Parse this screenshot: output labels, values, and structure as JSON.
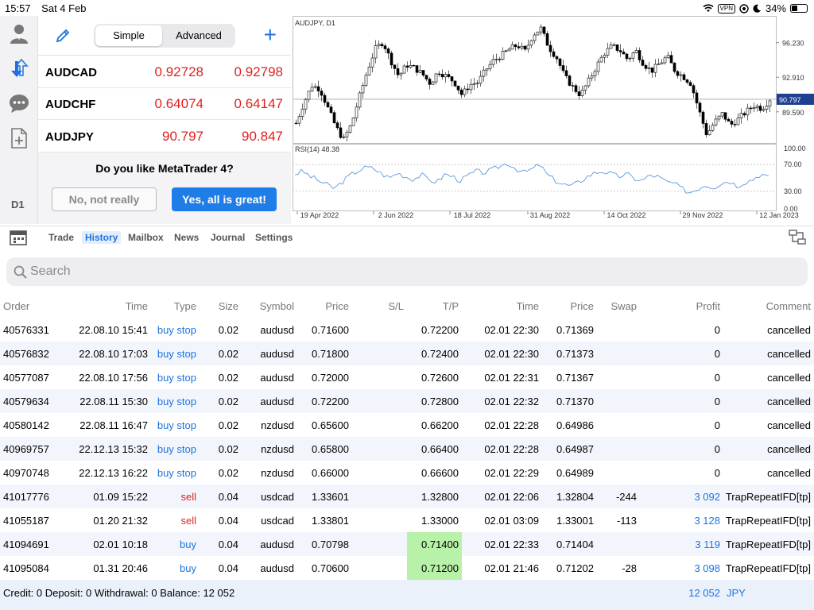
{
  "status_bar": {
    "time": "15:57",
    "date": "Sat 4 Feb",
    "vpn": "VPN",
    "battery": "34%"
  },
  "sidebar": {
    "timeframe": "D1"
  },
  "watchlist": {
    "mode_simple": "Simple",
    "mode_advanced": "Advanced",
    "rows": [
      {
        "symbol": "AUDCAD",
        "bid": "0.92728",
        "ask": "0.92798"
      },
      {
        "symbol": "AUDCHF",
        "bid": "0.64074",
        "ask": "0.64147"
      },
      {
        "symbol": "AUDJPY",
        "bid": "90.797",
        "ask": "90.847"
      }
    ],
    "prompt": "Do you like MetaTrader 4?",
    "no_label": "No, not really",
    "yes_label": "Yes, all is great!"
  },
  "chart_data": {
    "type": "candlestick",
    "title": "AUDJPY, D1",
    "indicator": "RSI(14) 48.38",
    "current_price": "90.797",
    "price_ticks": [
      "96.230",
      "92.910",
      "89.590"
    ],
    "rsi_ticks": [
      "100.00",
      "70.00",
      "30.00",
      "0.00"
    ],
    "x_ticks": [
      "19 Apr 2022",
      "2 Jun 2022",
      "18 Jul 2022",
      "31 Aug 2022",
      "14 Oct 2022",
      "29 Nov 2022",
      "12 Jan 2023"
    ],
    "ylim": [
      86.6,
      98.8
    ],
    "rsi_ylim": [
      0,
      100
    ],
    "close_path": [
      88.5,
      90.5,
      92.1,
      91.8,
      90.0,
      88.2,
      86.9,
      88.4,
      91.0,
      93.5,
      95.6,
      96.3,
      94.5,
      93.0,
      94.1,
      93.8,
      93.2,
      92.3,
      93.5,
      93.0,
      92.5,
      91.2,
      92.2,
      92.4,
      93.6,
      94.5,
      95.0,
      95.6,
      96.0,
      95.4,
      97.0,
      97.6,
      95.8,
      94.8,
      93.0,
      92.0,
      91.2,
      92.5,
      93.9,
      95.2,
      95.9,
      95.5,
      94.6,
      95.5,
      94.2,
      93.5,
      94.2,
      94.9,
      93.5,
      93.0,
      92.3,
      89.8,
      87.4,
      88.6,
      89.4,
      88.3,
      88.9,
      89.6,
      90.2,
      89.9,
      90.8
    ],
    "rsi_path": [
      56,
      60,
      52,
      46,
      40,
      34,
      44,
      54,
      61,
      66,
      64,
      56,
      50,
      58,
      52,
      48,
      55,
      47,
      44,
      56,
      52,
      46,
      54,
      60,
      58,
      62,
      68,
      72,
      64,
      58,
      63,
      70,
      54,
      46,
      40,
      38,
      44,
      52,
      58,
      60,
      56,
      52,
      56,
      49,
      46,
      54,
      52,
      44,
      42,
      34,
      28,
      34,
      40,
      36,
      42,
      46,
      38,
      44,
      48,
      56,
      50
    ]
  },
  "tabs": [
    "Trade",
    "History",
    "Mailbox",
    "News",
    "Journal",
    "Settings"
  ],
  "active_tab": "History",
  "search": {
    "placeholder": "Search"
  },
  "history": {
    "columns": [
      "Order",
      "Time",
      "Type",
      "Size",
      "Symbol",
      "Price",
      "S/L",
      "T/P",
      "Time",
      "Price",
      "Swap",
      "Profit",
      "Comment"
    ],
    "rows": [
      {
        "order": "40576331",
        "open_time": "22.08.10 15:41",
        "type": "buy stop",
        "size": "0.02",
        "symbol": "audusd",
        "price": "0.71600",
        "sl": "",
        "tp": "0.72200",
        "close_time": "02.01 22:30",
        "close_price": "0.71369",
        "swap": "",
        "profit": "0",
        "comment": "cancelled"
      },
      {
        "order": "40576832",
        "open_time": "22.08.10 17:03",
        "type": "buy stop",
        "size": "0.02",
        "symbol": "audusd",
        "price": "0.71800",
        "sl": "",
        "tp": "0.72400",
        "close_time": "02.01 22:30",
        "close_price": "0.71373",
        "swap": "",
        "profit": "0",
        "comment": "cancelled"
      },
      {
        "order": "40577087",
        "open_time": "22.08.10 17:56",
        "type": "buy stop",
        "size": "0.02",
        "symbol": "audusd",
        "price": "0.72000",
        "sl": "",
        "tp": "0.72600",
        "close_time": "02.01 22:31",
        "close_price": "0.71367",
        "swap": "",
        "profit": "0",
        "comment": "cancelled"
      },
      {
        "order": "40579634",
        "open_time": "22.08.11 15:30",
        "type": "buy stop",
        "size": "0.02",
        "symbol": "audusd",
        "price": "0.72200",
        "sl": "",
        "tp": "0.72800",
        "close_time": "02.01 22:32",
        "close_price": "0.71370",
        "swap": "",
        "profit": "0",
        "comment": "cancelled"
      },
      {
        "order": "40580142",
        "open_time": "22.08.11 16:47",
        "type": "buy stop",
        "size": "0.02",
        "symbol": "nzdusd",
        "price": "0.65600",
        "sl": "",
        "tp": "0.66200",
        "close_time": "02.01 22:28",
        "close_price": "0.64986",
        "swap": "",
        "profit": "0",
        "comment": "cancelled"
      },
      {
        "order": "40969757",
        "open_time": "22.12.13 15:32",
        "type": "buy stop",
        "size": "0.02",
        "symbol": "nzdusd",
        "price": "0.65800",
        "sl": "",
        "tp": "0.66400",
        "close_time": "02.01 22:28",
        "close_price": "0.64987",
        "swap": "",
        "profit": "0",
        "comment": "cancelled"
      },
      {
        "order": "40970748",
        "open_time": "22.12.13 16:22",
        "type": "buy stop",
        "size": "0.02",
        "symbol": "nzdusd",
        "price": "0.66000",
        "sl": "",
        "tp": "0.66600",
        "close_time": "02.01 22:29",
        "close_price": "0.64989",
        "swap": "",
        "profit": "0",
        "comment": "cancelled"
      },
      {
        "order": "41017776",
        "open_time": "01.09 15:22",
        "type": "sell",
        "size": "0.04",
        "symbol": "usdcad",
        "price": "1.33601",
        "sl": "",
        "tp": "1.32800",
        "close_time": "02.01 22:06",
        "close_price": "1.32804",
        "swap": "-244",
        "profit": "3 092",
        "comment": "TrapRepeatIFD[tp]"
      },
      {
        "order": "41055187",
        "open_time": "01.20 21:32",
        "type": "sell",
        "size": "0.04",
        "symbol": "usdcad",
        "price": "1.33801",
        "sl": "",
        "tp": "1.33000",
        "close_time": "02.01 03:09",
        "close_price": "1.33001",
        "swap": "-113",
        "profit": "3 128",
        "comment": "TrapRepeatIFD[tp]"
      },
      {
        "order": "41094691",
        "open_time": "02.01 10:18",
        "type": "buy",
        "size": "0.04",
        "symbol": "audusd",
        "price": "0.70798",
        "sl": "",
        "tp": "0.71400",
        "close_time": "02.01 22:33",
        "close_price": "0.71404",
        "swap": "",
        "profit": "3 119",
        "comment": "TrapRepeatIFD[tp]",
        "tp_hit": true
      },
      {
        "order": "41095084",
        "open_time": "01.31 20:46",
        "type": "buy",
        "size": "0.04",
        "symbol": "audusd",
        "price": "0.70600",
        "sl": "",
        "tp": "0.71200",
        "close_time": "02.01 21:46",
        "close_price": "0.71202",
        "swap": "-28",
        "profit": "3 098",
        "comment": "TrapRepeatIFD[tp]",
        "tp_hit": true
      }
    ]
  },
  "footer": {
    "summary": "Credit: 0 Deposit: 0 Withdrawal: 0 Balance: 12 052",
    "total_profit": "12 052",
    "currency": "JPY"
  },
  "colors": {
    "accent": "#1f72e0",
    "price_red": "#e02020",
    "tp_highlight": "#b8f2a8",
    "row_alt": "#f2f6fc"
  }
}
